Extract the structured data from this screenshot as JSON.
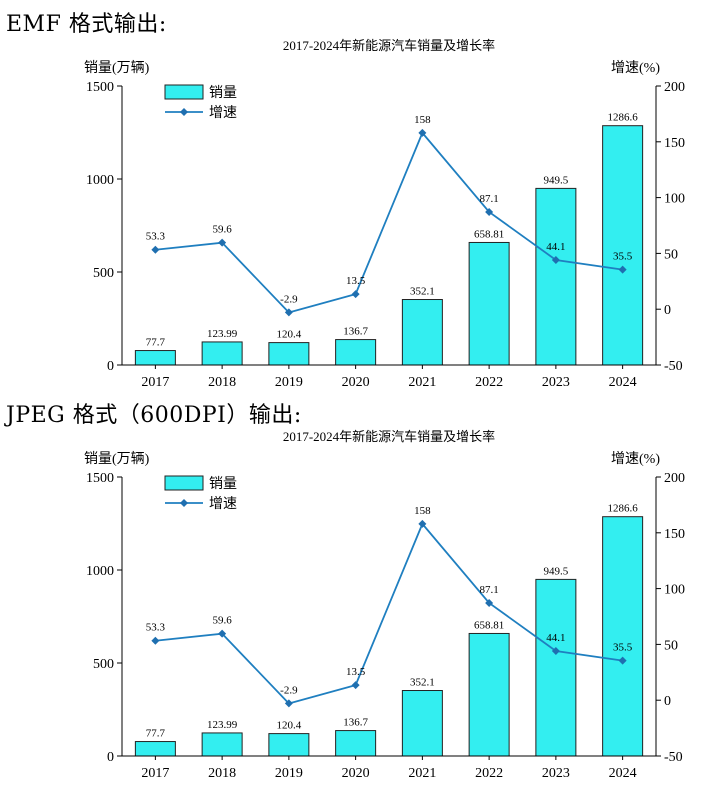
{
  "headings": {
    "emf": "EMF 格式输出:",
    "jpeg": "JPEG 格式（600DPI）输出:"
  },
  "chart_data": [
    {
      "type": "bar",
      "title": "2017-2024年新能源汽车销量及增长率",
      "ylabel": "销量(万辆)",
      "y2label": "增速(%)",
      "categories": [
        "2017",
        "2018",
        "2019",
        "2020",
        "2021",
        "2022",
        "2023",
        "2024"
      ],
      "category_labels": [
        "2017",
        "2018",
        "2019",
        "2020",
        "2021",
        "2022",
        "2023",
        "2024"
      ],
      "ylim": [
        0,
        1500
      ],
      "yticks": [
        0,
        500,
        1000,
        1500
      ],
      "ytick_labels": [
        "0",
        "500",
        "1000",
        "1500"
      ],
      "y2lim": [
        -50,
        200
      ],
      "y2ticks": [
        -50,
        0,
        50,
        100,
        150,
        200
      ],
      "y2tick_labels": [
        "-50",
        "0",
        "50",
        "100",
        "150",
        "200"
      ],
      "series": [
        {
          "name": "销量",
          "type": "bar",
          "axis": "left",
          "values": [
            77.7,
            123.99,
            120.4,
            136.7,
            352.1,
            658.81,
            949.5,
            1286.6
          ],
          "labels": [
            "77.7",
            "123.99",
            "120.4",
            "136.7",
            "352.1",
            "658.81",
            "949.5",
            "1286.6"
          ]
        },
        {
          "name": "增速",
          "type": "line",
          "axis": "right",
          "values": [
            53.3,
            59.6,
            -2.9,
            13.5,
            158,
            87.1,
            44.1,
            35.5
          ],
          "labels": [
            "53.3",
            "59.6",
            "-2.9",
            "13.5",
            "158",
            "87.1",
            "44.1",
            "35.5"
          ]
        }
      ],
      "legend_position": "top-left",
      "colors": {
        "bar_fill": "#33eef0",
        "bar_stroke": "#222222",
        "line": "#1f7fc0",
        "marker": "#1f6fb0"
      }
    },
    {
      "type": "bar",
      "title": "2017-2024年新能源汽车销量及增长率",
      "ylabel": "销量(万辆)",
      "y2label": "增速(%)",
      "categories": [
        "2017",
        "2018",
        "2019",
        "2020",
        "2021",
        "2022",
        "2023",
        "2024"
      ],
      "category_labels": [
        "2017",
        "2018",
        "2019",
        "2020",
        "2021",
        "2022",
        "2023",
        "2024"
      ],
      "ylim": [
        0,
        1500
      ],
      "yticks": [
        0,
        500,
        1000,
        1500
      ],
      "ytick_labels": [
        "0",
        "500",
        "1000",
        "1500"
      ],
      "y2lim": [
        -50,
        200
      ],
      "y2ticks": [
        -50,
        0,
        50,
        100,
        150,
        200
      ],
      "y2tick_labels": [
        "-50",
        "0",
        "50",
        "100",
        "150",
        "200"
      ],
      "series": [
        {
          "name": "销量",
          "type": "bar",
          "axis": "left",
          "values": [
            77.7,
            123.99,
            120.4,
            136.7,
            352.1,
            658.81,
            949.5,
            1286.6
          ],
          "labels": [
            "77.7",
            "123.99",
            "120.4",
            "136.7",
            "352.1",
            "658.81",
            "949.5",
            "1286.6"
          ]
        },
        {
          "name": "增速",
          "type": "line",
          "axis": "right",
          "values": [
            53.3,
            59.6,
            -2.9,
            13.5,
            158,
            87.1,
            44.1,
            35.5
          ],
          "labels": [
            "53.3",
            "59.6",
            "-2.9",
            "13.5",
            "158",
            "87.1",
            "44.1",
            "35.5"
          ]
        }
      ],
      "legend_position": "top-left",
      "colors": {
        "bar_fill": "#33eef0",
        "bar_stroke": "#222222",
        "line": "#1f7fc0",
        "marker": "#1f6fb0"
      }
    }
  ]
}
